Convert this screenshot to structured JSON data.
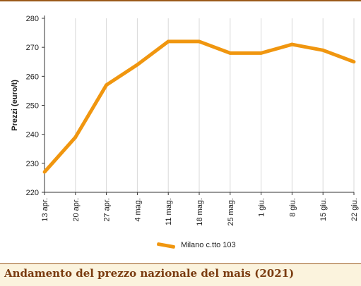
{
  "colors": {
    "line": "#f0960f",
    "axis": "#333333",
    "grid": "#d8d8d8",
    "rule": "#9b5a1a",
    "title": "#7a3c10"
  },
  "footer": {
    "title": "Andamento del prezzo nazionale del mais (2021)"
  },
  "legend": {
    "label": "Milano  c.tto 103",
    "placement": "bottom-center"
  },
  "chart_data": {
    "type": "line",
    "title": "",
    "xlabel": "",
    "ylabel": "Prezzi (euro/t)",
    "ylim": [
      220,
      280
    ],
    "yticks": [
      220,
      230,
      240,
      250,
      260,
      270,
      280
    ],
    "grid": "vertical",
    "categories": [
      "13 apr.",
      "20 apr.",
      "27 apr.",
      "4 mag.",
      "11 mag.",
      "18 mag.",
      "25 mag.",
      "1 giu.",
      "8 giu.",
      "15 giu.",
      "22 giu."
    ],
    "series": [
      {
        "name": "Milano  c.tto 103",
        "values": [
          227,
          239,
          257,
          264,
          272,
          272,
          268,
          268,
          271,
          269,
          265
        ]
      }
    ]
  }
}
